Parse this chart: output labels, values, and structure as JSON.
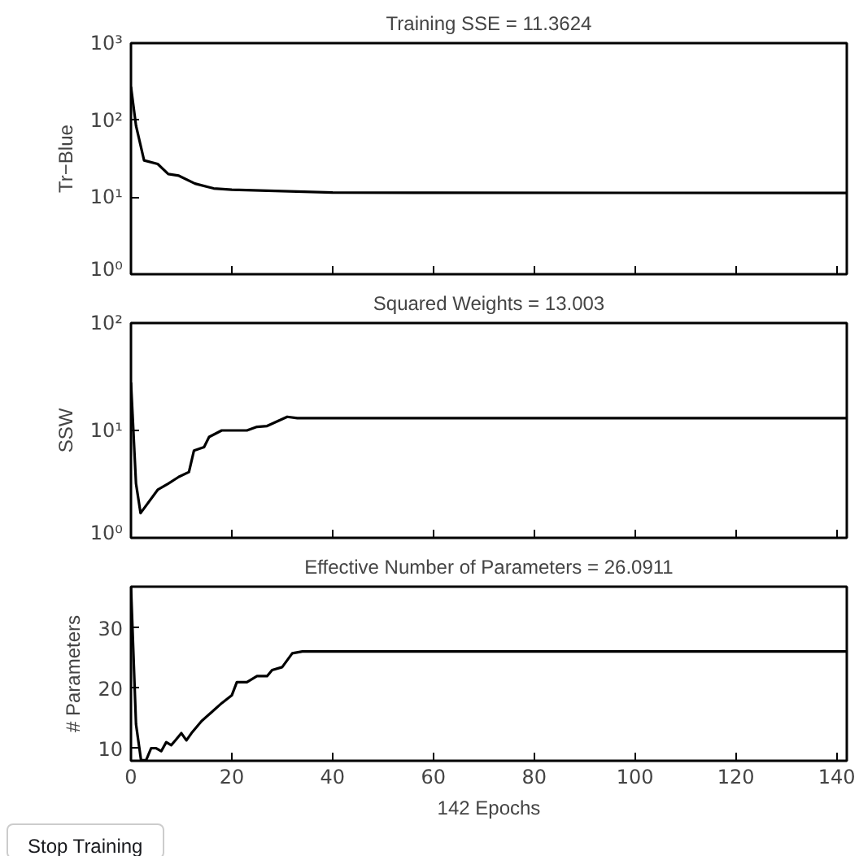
{
  "chart_data": [
    {
      "type": "line",
      "title": "Training SSE = 11.3624",
      "ylabel": "Tr−Blue",
      "log": "y",
      "grid": false,
      "tick_labels": "y",
      "xlim": [
        0,
        142
      ],
      "ylim": [
        1,
        1000
      ],
      "xticks": [
        {
          "value": 0,
          "label": null
        },
        {
          "value": 20,
          "label": null
        },
        {
          "value": 40,
          "label": null
        },
        {
          "value": 60,
          "label": null
        },
        {
          "value": 80,
          "label": null
        },
        {
          "value": 100,
          "label": null
        },
        {
          "value": 120,
          "label": null
        },
        {
          "value": 140,
          "label": null
        }
      ],
      "yticks": [
        {
          "value": 1,
          "label": "10⁰"
        },
        {
          "value": 10,
          "label": "10¹"
        },
        {
          "value": 100,
          "label": "10²"
        },
        {
          "value": 1000,
          "label": "10³"
        }
      ],
      "series": [
        {
          "color": "#000000",
          "x": [
            0,
            1,
            2.6,
            5.3,
            7.4,
            9.5,
            12.7,
            16.4,
            20,
            30,
            40,
            60,
            142
          ],
          "values": [
            270,
            85,
            30,
            27,
            20,
            19,
            15,
            13,
            12.5,
            12,
            11.5,
            11.4,
            11.36
          ]
        }
      ]
    },
    {
      "type": "line",
      "title": "Squared Weights = 13.003",
      "ylabel": "SSW",
      "log": "y",
      "grid": false,
      "tick_labels": "y",
      "xlim": [
        0,
        142
      ],
      "ylim": [
        1,
        100
      ],
      "xticks": [
        {
          "value": 0,
          "label": null
        },
        {
          "value": 20,
          "label": null
        },
        {
          "value": 40,
          "label": null
        },
        {
          "value": 60,
          "label": null
        },
        {
          "value": 80,
          "label": null
        },
        {
          "value": 100,
          "label": null
        },
        {
          "value": 120,
          "label": null
        },
        {
          "value": 140,
          "label": null
        }
      ],
      "yticks": [
        {
          "value": 1,
          "label": "10⁰"
        },
        {
          "value": 10,
          "label": "10¹"
        },
        {
          "value": 100,
          "label": "10²"
        }
      ],
      "series": [
        {
          "color": "#000000",
          "x": [
            0,
            1,
            1.9,
            5.3,
            7.4,
            9.5,
            11.5,
            12.5,
            14.5,
            15.5,
            18,
            23,
            25,
            27,
            31,
            33,
            40,
            142
          ],
          "values": [
            28,
            3.2,
            1.7,
            2.8,
            3.2,
            3.7,
            4.1,
            6.5,
            7,
            8.7,
            10,
            10,
            10.8,
            11,
            13.4,
            13,
            13,
            13.003
          ]
        }
      ]
    },
    {
      "type": "line",
      "title": "Effective Number of Parameters = 26.0911",
      "ylabel": "# Parameters",
      "xlabel": "142 Epochs",
      "grid": false,
      "xlim": [
        0,
        142
      ],
      "ylim": [
        7.9,
        36.9
      ],
      "xticks": [
        0,
        20,
        40,
        60,
        80,
        100,
        120,
        140
      ],
      "yticks": [
        10,
        20,
        30
      ],
      "annotations": [
        "Stop Training"
      ],
      "series": [
        {
          "color": "#000000",
          "x": [
            0,
            1,
            2,
            3,
            4,
            5,
            6,
            7,
            8,
            9,
            10,
            11,
            12,
            14,
            16,
            18,
            20,
            21,
            23,
            25,
            27,
            28,
            30,
            32,
            34,
            40,
            142
          ],
          "values": [
            36.9,
            14,
            8,
            8,
            10,
            10,
            9.5,
            11,
            10.5,
            11.5,
            12.5,
            11.3,
            12.5,
            14.5,
            16,
            17.5,
            18.8,
            21,
            21,
            22,
            22,
            23,
            23.5,
            25.8,
            26.1,
            26.1,
            26.1
          ]
        }
      ]
    }
  ]
}
